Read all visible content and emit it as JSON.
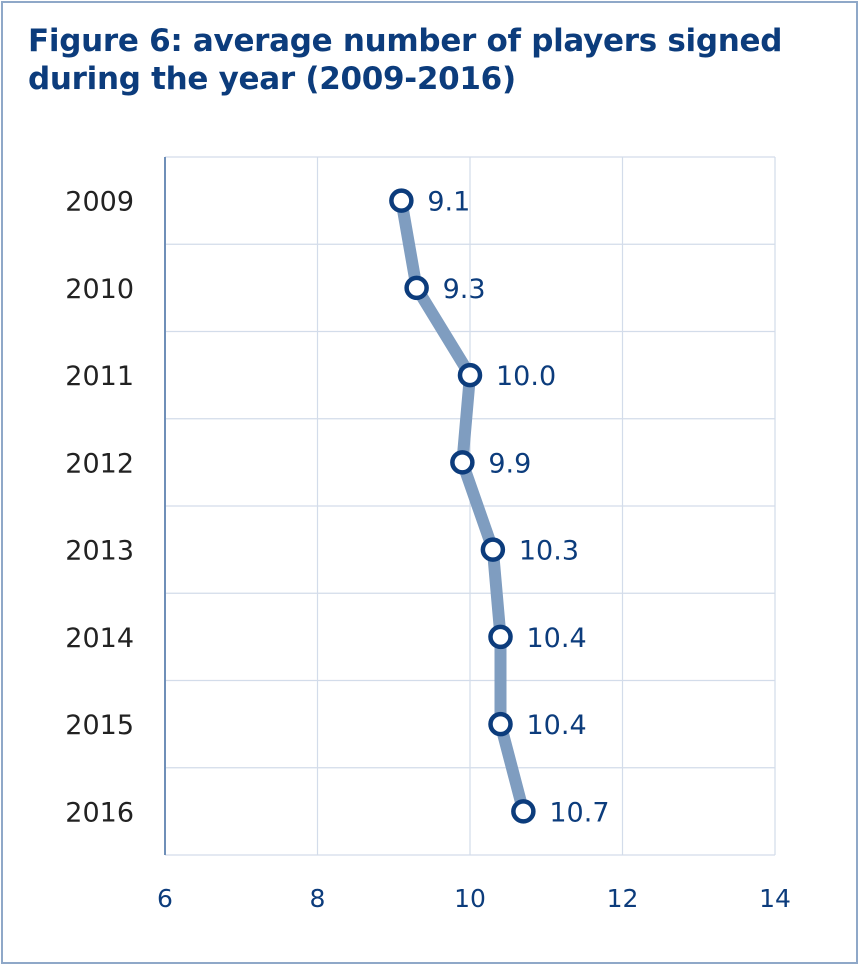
{
  "chart_data": {
    "type": "line",
    "orientation": "horizontal",
    "title": "Figure 6: average number of players signed during the year (2009-2016)",
    "categories": [
      "2009",
      "2010",
      "2011",
      "2012",
      "2013",
      "2014",
      "2015",
      "2016"
    ],
    "values": [
      9.1,
      9.3,
      10.0,
      9.9,
      10.3,
      10.4,
      10.4,
      10.7
    ],
    "data_labels": [
      "9.1",
      "9.3",
      "10.0",
      "9.9",
      "10.3",
      "10.4",
      "10.4",
      "10.7"
    ],
    "xlim": [
      6,
      14
    ],
    "xticks": [
      "6",
      "8",
      "10",
      "12",
      "14"
    ],
    "xlabel": "",
    "ylabel": "",
    "grid": true,
    "colors": {
      "line": "#7f9dc0",
      "marker": "#0c3c7c",
      "text": "#0c3c7c",
      "category_text": "#222222",
      "grid": "#d3dcea"
    }
  }
}
